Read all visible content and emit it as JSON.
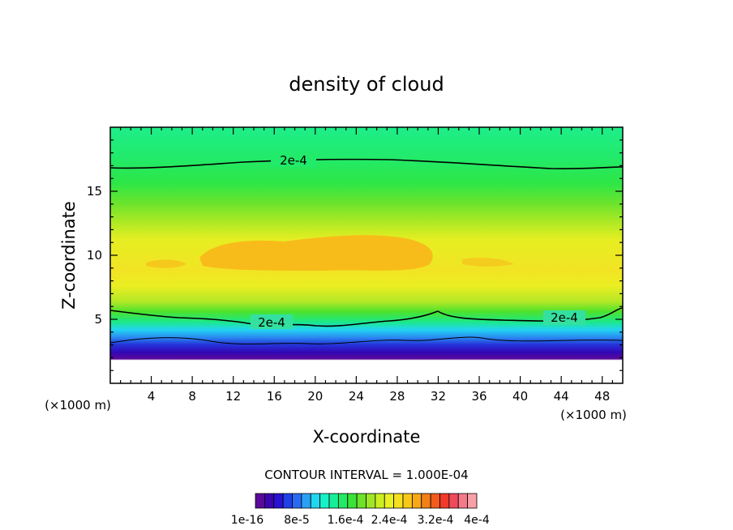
{
  "chart_data": {
    "type": "contour",
    "title": "density of cloud",
    "xlabel": "X-coordinate",
    "ylabel": "Z-coordinate",
    "x_unit_left": "(×1000 m)",
    "x_unit_right": "(×1000 m)",
    "xlim": [
      0,
      50
    ],
    "ylim": [
      0,
      20
    ],
    "x_ticks": [
      4,
      8,
      12,
      16,
      20,
      24,
      28,
      32,
      36,
      40,
      44,
      48
    ],
    "y_ticks": [
      5,
      10,
      15
    ],
    "contour_interval_text": "CONTOUR INTERVAL = 1.000E-04",
    "contour_labels": [
      {
        "text": "2e-4",
        "x": 17.5,
        "z": 17.3
      },
      {
        "text": "2e-4",
        "x": 15.5,
        "z": 4.8
      },
      {
        "text": "2e-4",
        "x": 44.5,
        "z": 5.1
      }
    ],
    "colorbar": {
      "colors": [
        "#5a0a99",
        "#3b05b0",
        "#2a12d2",
        "#2040e8",
        "#2a6af2",
        "#2aa0f5",
        "#22d6f0",
        "#18f0c8",
        "#16ee9a",
        "#22ea66",
        "#3ae23a",
        "#6ee22a",
        "#a0e626",
        "#ccee20",
        "#eaf022",
        "#f4e020",
        "#f8c818",
        "#f6a818",
        "#f48018",
        "#f25a1e",
        "#f03a2a",
        "#ee4a5a",
        "#f47a8a",
        "#f8a0a8"
      ],
      "tick_labels": [
        "1e-16",
        "8e-5",
        "1.6e-4",
        "2.4e-4",
        "3.2e-4",
        "4e-4"
      ]
    },
    "grid": false
  }
}
